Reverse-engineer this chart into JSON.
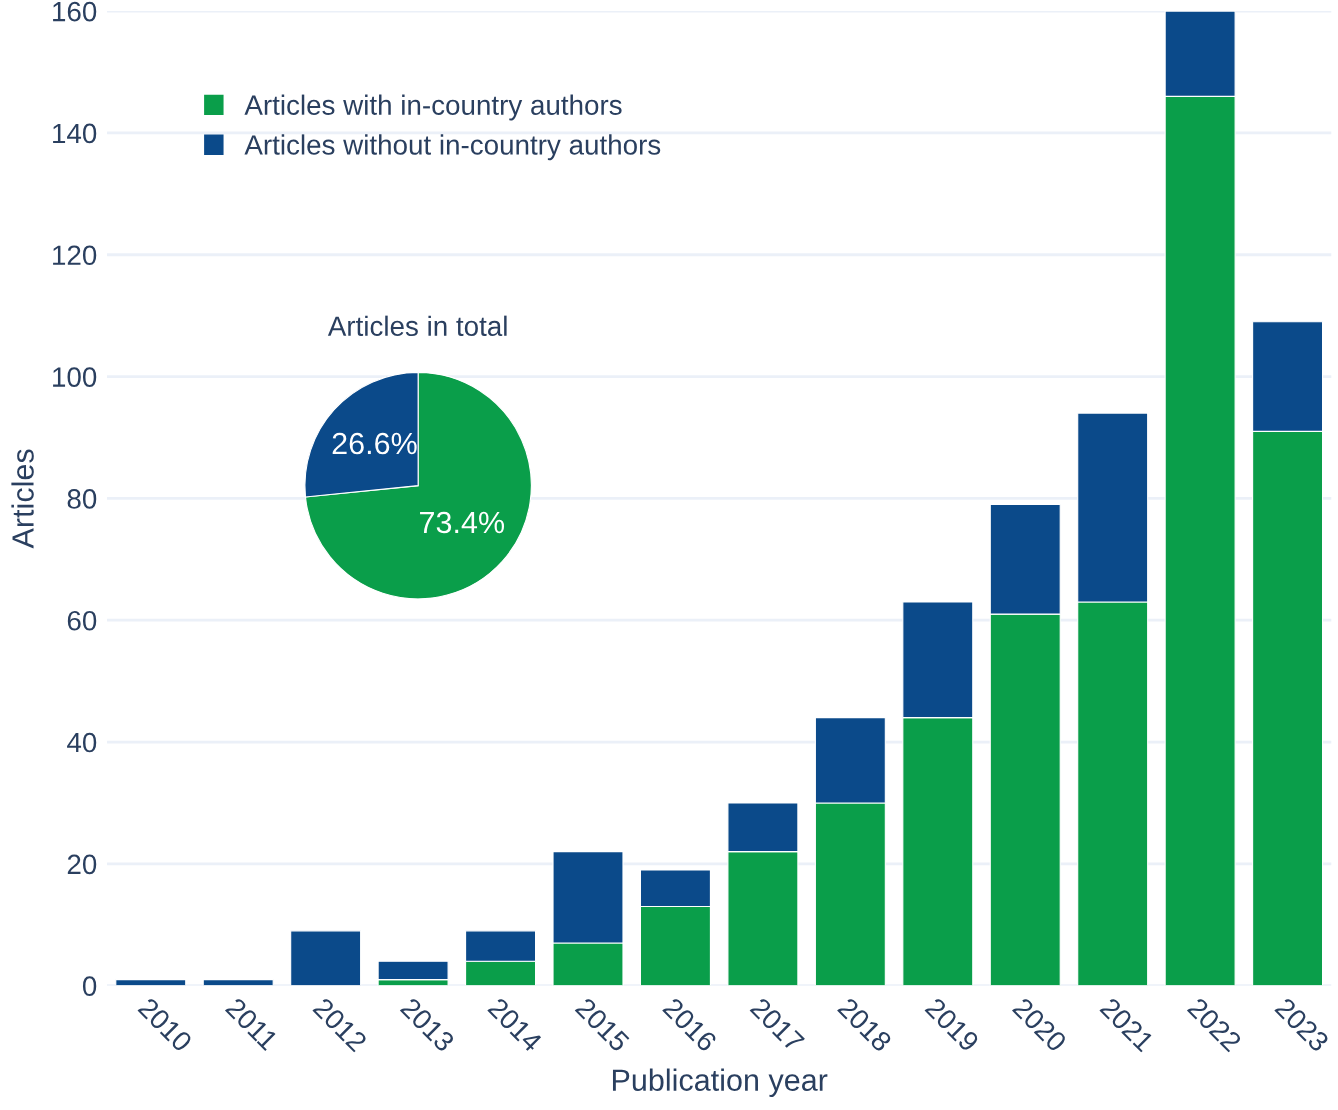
{
  "chart_data": [
    {
      "type": "bar",
      "stacked": true,
      "xlabel": "Publication year",
      "ylabel": "Articles",
      "categories": [
        "2010",
        "2011",
        "2012",
        "2013",
        "2014",
        "2015",
        "2016",
        "2017",
        "2018",
        "2019",
        "2020",
        "2021",
        "2022",
        "2023"
      ],
      "series": [
        {
          "name": "Articles with in-country authors",
          "color": "#0a9e4a",
          "values": [
            0,
            0,
            0,
            1,
            4,
            7,
            13,
            22,
            30,
            44,
            61,
            63,
            146,
            91
          ]
        },
        {
          "name": "Articles without in-country authors",
          "color": "#0b4a8a",
          "values": [
            1,
            1,
            9,
            3,
            5,
            15,
            6,
            8,
            14,
            19,
            18,
            31,
            14,
            18
          ]
        }
      ],
      "ylim": [
        0,
        160
      ],
      "yticks": [
        0,
        20,
        40,
        60,
        80,
        100,
        120,
        140,
        160
      ],
      "grid": "y",
      "legend": "top left"
    },
    {
      "type": "pie",
      "title": "Articles in total",
      "categories": [
        null,
        null
      ],
      "values": [
        73.4,
        26.6
      ],
      "colors": [
        "#0a9e4a",
        "#0b4a8a"
      ],
      "value_labels": [
        "73.4%",
        "26.6%"
      ]
    }
  ]
}
